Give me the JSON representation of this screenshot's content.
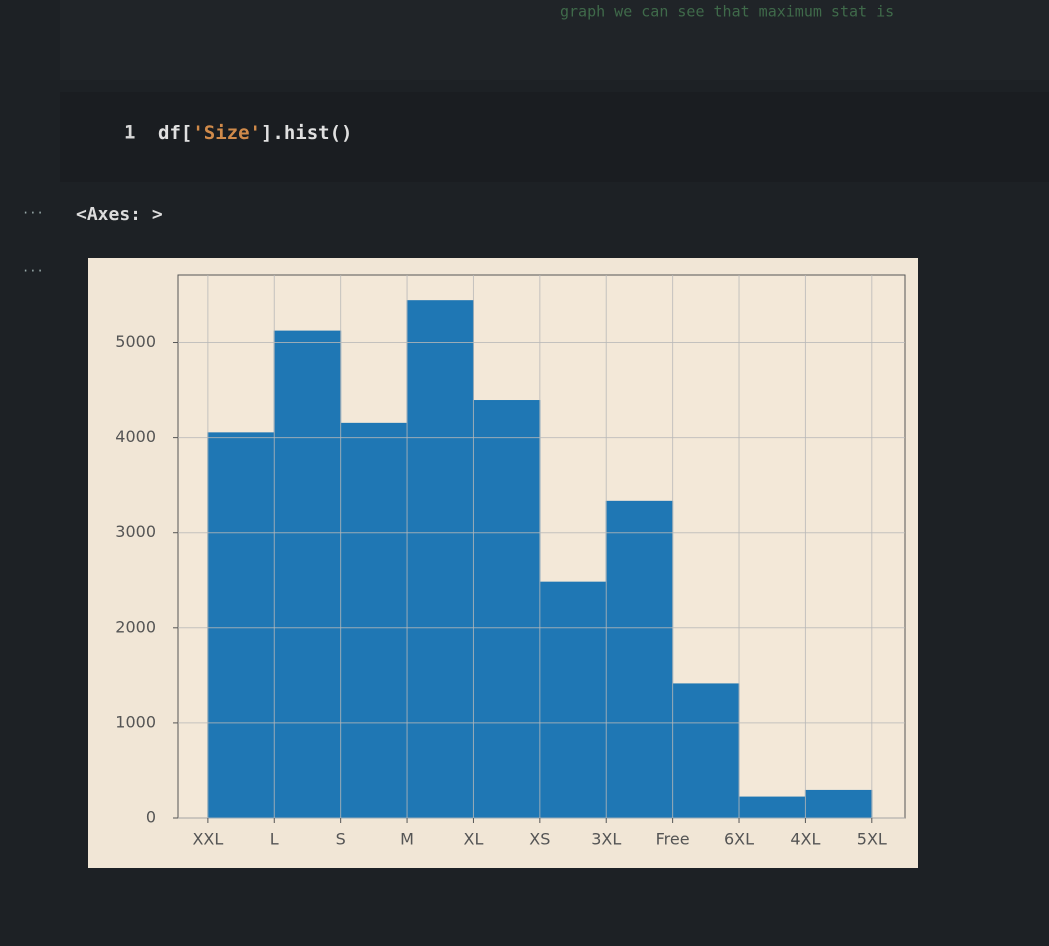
{
  "notebook": {
    "header_text": "graph we can see that maximum stat is",
    "prompts": [
      "...",
      "..."
    ],
    "cell": {
      "line_number": "1",
      "code_parts": [
        "df[",
        "'Size'",
        "].hist()"
      ]
    },
    "output": "<Axes: >"
  },
  "chart_data": {
    "type": "histogram",
    "bins": [
      0,
      1,
      2,
      3,
      4,
      5,
      6,
      7,
      8,
      9,
      10
    ],
    "values": [
      4050,
      5120,
      4150,
      5440,
      4390,
      2480,
      3330,
      1410,
      220,
      290
    ],
    "color": "#1f77b4",
    "xlim": [
      -0.45,
      10.5
    ],
    "xticks": [
      {
        "value": 0,
        "label": "XXL"
      },
      {
        "value": 1,
        "label": "L"
      },
      {
        "value": 2,
        "label": "S"
      },
      {
        "value": 3,
        "label": "M"
      },
      {
        "value": 4,
        "label": "XL"
      },
      {
        "value": 5,
        "label": "XS"
      },
      {
        "value": 6,
        "label": "3XL"
      },
      {
        "value": 7,
        "label": "Free"
      },
      {
        "value": 8,
        "label": "6XL"
      },
      {
        "value": 9,
        "label": "4XL"
      },
      {
        "value": 10,
        "label": "5XL"
      }
    ],
    "ylim": [
      0,
      5710
    ],
    "yticks": [
      0,
      1000,
      2000,
      3000,
      4000,
      5000
    ],
    "grid": true
  }
}
